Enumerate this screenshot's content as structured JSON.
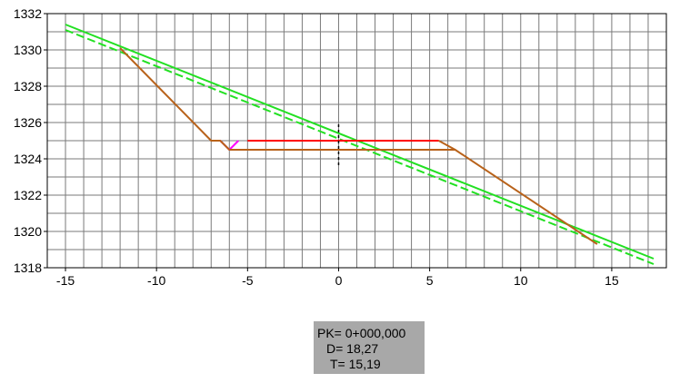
{
  "chart_data": {
    "type": "line",
    "title": "",
    "xlabel": "",
    "ylabel": "",
    "xlim": [
      -16,
      18
    ],
    "ylim": [
      1318,
      1332
    ],
    "grid": true,
    "x_ticks": [
      -15,
      -10,
      -5,
      0,
      5,
      10,
      15
    ],
    "x_tick_labels": [
      "-15",
      "-10",
      "-5",
      "0",
      "5",
      "10",
      "15"
    ],
    "y_ticks": [
      1318,
      1320,
      1322,
      1324,
      1326,
      1328,
      1330,
      1332
    ],
    "y_tick_labels": [
      "1318",
      "1320",
      "1322",
      "1324",
      "1326",
      "1328",
      "1330",
      "1332"
    ],
    "series": [
      {
        "color": "#22e022",
        "style": "solid",
        "points": [
          [
            -15,
            1331.4
          ],
          [
            17.3,
            1318.5
          ]
        ]
      },
      {
        "color": "#22e022",
        "style": "dashed",
        "points": [
          [
            -15,
            1331.1
          ],
          [
            17.3,
            1318.2
          ]
        ]
      },
      {
        "color": "#ff0000",
        "style": "solid",
        "points": [
          [
            -5,
            1325
          ],
          [
            5.5,
            1325
          ]
        ]
      },
      {
        "color": "#ff00ff",
        "style": "solid",
        "points": [
          [
            -7,
            1325
          ],
          [
            -6.5,
            1325
          ],
          [
            -6,
            1324.5
          ],
          [
            -5.5,
            1325
          ]
        ]
      },
      {
        "color": "#b8621a",
        "style": "solid",
        "points": [
          [
            -12,
            1330.1
          ],
          [
            -7,
            1325
          ],
          [
            -6.5,
            1325
          ],
          [
            -6,
            1324.5
          ],
          [
            6.4,
            1324.5
          ],
          [
            14.2,
            1319.3
          ]
        ]
      },
      {
        "color": "#b8621a",
        "style": "solid",
        "points": [
          [
            5.5,
            1325
          ],
          [
            6.4,
            1324.5
          ]
        ]
      }
    ],
    "axis_marker": {
      "x": 0,
      "y_range": [
        1323.6,
        1325.9
      ],
      "color": "#000000",
      "style": "dashed"
    }
  },
  "info": {
    "pk": "PK= 0+000,000",
    "d": "D= 18,27",
    "t": "T= 15,19"
  }
}
